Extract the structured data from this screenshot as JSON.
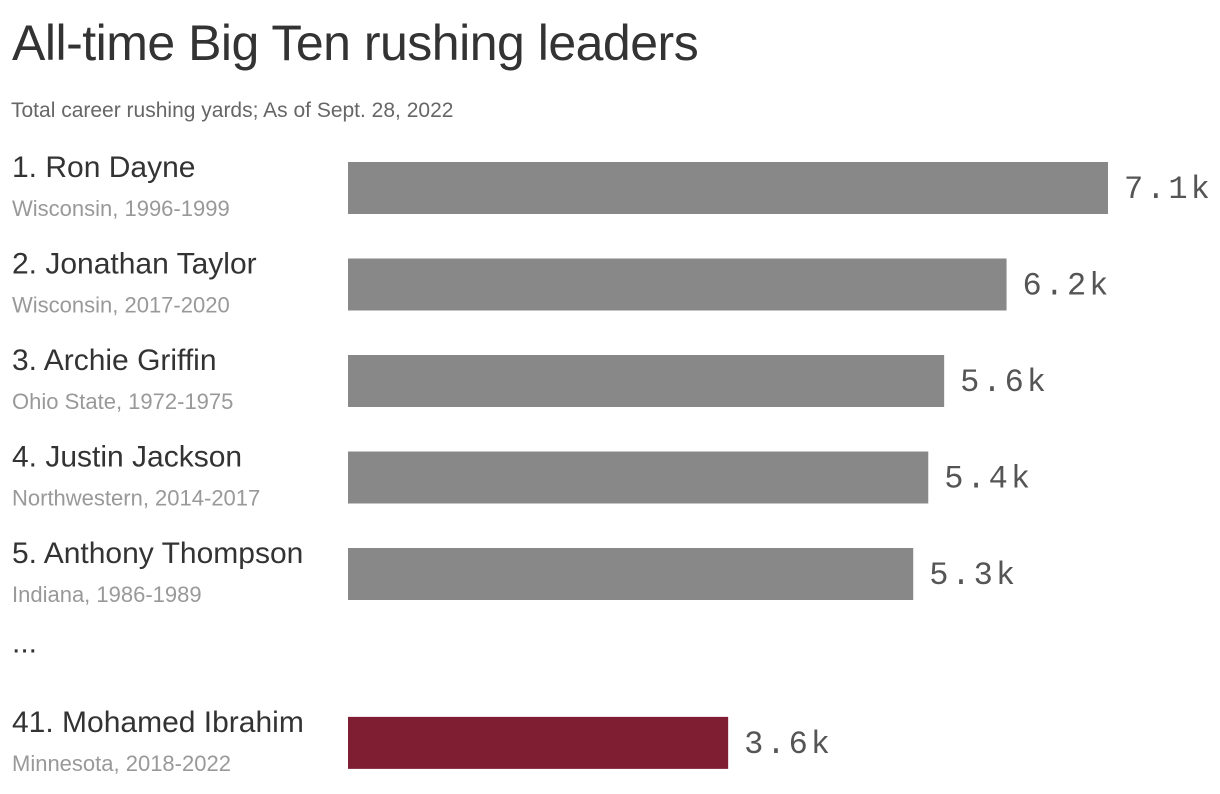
{
  "chart_data": {
    "type": "bar",
    "orientation": "horizontal",
    "title": "All-time Big Ten rushing leaders",
    "subtitle": "Total career rushing yards; As of Sept. 28, 2022",
    "bars": [
      {
        "rank_name": "1. Ron Dayne",
        "detail": "Wisconsin, 1996-1999",
        "value": 7125,
        "value_label": "7.1k",
        "color": "#888888"
      },
      {
        "rank_name": "2. Jonathan Taylor",
        "detail": "Wisconsin, 2017-2020",
        "value": 6174,
        "value_label": "6.2k",
        "color": "#888888"
      },
      {
        "rank_name": "3. Archie Griffin",
        "detail": "Ohio State, 1972-1975",
        "value": 5589,
        "value_label": "5.6k",
        "color": "#888888"
      },
      {
        "rank_name": "4. Justin Jackson",
        "detail": "Northwestern, 2014-2017",
        "value": 5440,
        "value_label": "5.4k",
        "color": "#888888"
      },
      {
        "rank_name": "5. Anthony Thompson",
        "detail": "Indiana, 1986-1989",
        "value": 5299,
        "value_label": "5.3k",
        "color": "#888888"
      },
      {
        "rank_name": "41. Mohamed Ibrahim",
        "detail": "Minnesota, 2018-2022",
        "value": 3564,
        "value_label": "3.6k",
        "color": "#7f1d32"
      }
    ],
    "ellipsis": "...",
    "ellipsis_after_index": 4,
    "xlim": [
      0,
      7125
    ],
    "grid": false,
    "legend": "none"
  }
}
